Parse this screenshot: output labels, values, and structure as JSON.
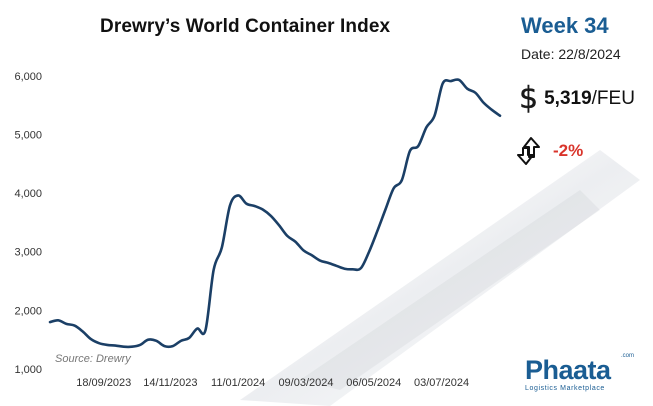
{
  "header": {
    "title": "Drewry’s World Container Index",
    "week": "Week 34",
    "date": "Date: 22/8/2024",
    "price_value": "5,319",
    "price_unit": "/FEU",
    "change": "-2%"
  },
  "brand": {
    "name": "Phaata",
    "tagline": "Logistics Marketplace",
    "domain_suffix": ".com"
  },
  "colors": {
    "line": "#1b3f66",
    "accent": "#1a5d93",
    "negative": "#d9342b"
  },
  "icons": [
    "dollar-icon",
    "swap-arrows-icon"
  ],
  "chart_data": {
    "type": "line",
    "title": "Drewry’s World Container Index",
    "xlabel": "",
    "ylabel": "",
    "source": "Source: Drewry",
    "x_ticks": [
      "18/09/2023",
      "14/11/2023",
      "11/01/2024",
      "09/03/2024",
      "06/05/2024",
      "03/07/2024"
    ],
    "y_ticks": [
      1000,
      2000,
      3000,
      4000,
      5000,
      6000
    ],
    "y_tick_labels": [
      "1,000",
      "2,000",
      "3,000",
      "4,000",
      "5,000",
      "6,000"
    ],
    "ylim": [
      1000,
      6150
    ],
    "xlim": [
      "2023-08-03",
      "2024-08-22"
    ],
    "grid": false,
    "series": [
      {
        "values": [
          [
            "2023-08-03",
            1800
          ],
          [
            "2023-08-10",
            1830
          ],
          [
            "2023-08-17",
            1770
          ],
          [
            "2023-08-24",
            1740
          ],
          [
            "2023-08-31",
            1640
          ],
          [
            "2023-09-07",
            1510
          ],
          [
            "2023-09-14",
            1440
          ],
          [
            "2023-09-21",
            1410
          ],
          [
            "2023-09-28",
            1400
          ],
          [
            "2023-10-05",
            1380
          ],
          [
            "2023-10-12",
            1380
          ],
          [
            "2023-10-19",
            1410
          ],
          [
            "2023-10-26",
            1500
          ],
          [
            "2023-11-02",
            1480
          ],
          [
            "2023-11-09",
            1390
          ],
          [
            "2023-11-16",
            1390
          ],
          [
            "2023-11-23",
            1480
          ],
          [
            "2023-11-30",
            1530
          ],
          [
            "2023-12-07",
            1690
          ],
          [
            "2023-12-14",
            1660
          ],
          [
            "2023-12-21",
            2690
          ],
          [
            "2023-12-28",
            3070
          ],
          [
            "2024-01-04",
            3790
          ],
          [
            "2024-01-11",
            3960
          ],
          [
            "2024-01-18",
            3820
          ],
          [
            "2024-01-25",
            3780
          ],
          [
            "2024-02-01",
            3720
          ],
          [
            "2024-02-08",
            3610
          ],
          [
            "2024-02-15",
            3450
          ],
          [
            "2024-02-22",
            3270
          ],
          [
            "2024-02-29",
            3170
          ],
          [
            "2024-03-07",
            3020
          ],
          [
            "2024-03-14",
            2940
          ],
          [
            "2024-03-21",
            2850
          ],
          [
            "2024-03-28",
            2810
          ],
          [
            "2024-04-04",
            2760
          ],
          [
            "2024-04-11",
            2710
          ],
          [
            "2024-04-18",
            2700
          ],
          [
            "2024-04-25",
            2720
          ],
          [
            "2024-05-02",
            3000
          ],
          [
            "2024-05-09",
            3350
          ],
          [
            "2024-05-16",
            3720
          ],
          [
            "2024-05-23",
            4080
          ],
          [
            "2024-05-30",
            4220
          ],
          [
            "2024-06-06",
            4720
          ],
          [
            "2024-06-13",
            4800
          ],
          [
            "2024-06-20",
            5120
          ],
          [
            "2024-06-27",
            5320
          ],
          [
            "2024-07-04",
            5870
          ],
          [
            "2024-07-11",
            5910
          ],
          [
            "2024-07-18",
            5930
          ],
          [
            "2024-07-25",
            5780
          ],
          [
            "2024-08-01",
            5710
          ],
          [
            "2024-08-08",
            5540
          ],
          [
            "2024-08-15",
            5420
          ],
          [
            "2024-08-22",
            5319
          ]
        ]
      }
    ]
  }
}
